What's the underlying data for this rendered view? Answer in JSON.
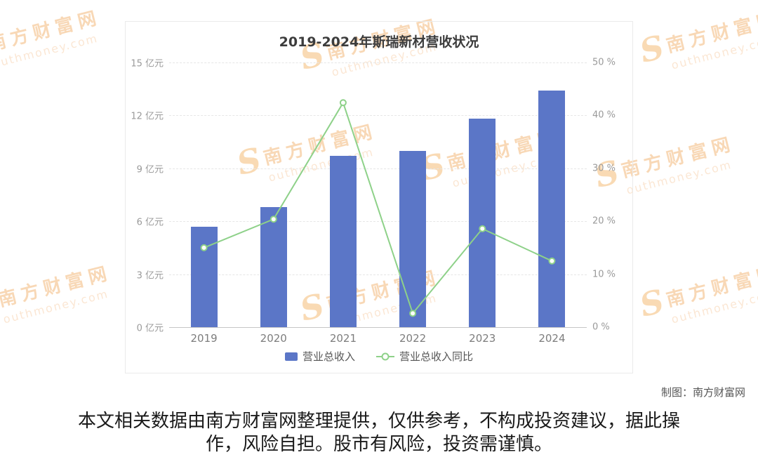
{
  "watermark": {
    "logo_letter": "S",
    "brand_cn": "南方财富网",
    "domain_rest": "outhmoney.com",
    "color": "#f2a94e"
  },
  "chart_data": {
    "type": "bar+line",
    "title": "2019-2024年斯瑞新材营收状况",
    "categories": [
      "2019",
      "2020",
      "2021",
      "2022",
      "2023",
      "2024"
    ],
    "series": [
      {
        "name": "营业总收入",
        "type": "bar",
        "axis": "left",
        "unit": "亿元",
        "color": "#5b76c7",
        "values": [
          5.7,
          6.8,
          9.7,
          10.0,
          11.8,
          13.4
        ]
      },
      {
        "name": "营业总收入同比",
        "type": "line",
        "axis": "right",
        "unit": "%",
        "color": "#8ed189",
        "values": [
          15.0,
          20.4,
          42.4,
          2.6,
          18.6,
          12.5
        ]
      }
    ],
    "left_axis": {
      "unit": "亿元",
      "min": 0,
      "max": 15,
      "ticks": [
        "0 亿元",
        "3 亿元",
        "6 亿元",
        "9 亿元",
        "12 亿元",
        "15 亿元"
      ]
    },
    "right_axis": {
      "unit": "%",
      "min": 0,
      "max": 50,
      "ticks": [
        "0 %",
        "10 %",
        "20 %",
        "30 %",
        "40 %",
        "50 %"
      ]
    },
    "legend_position": "bottom",
    "grid": true
  },
  "credit": "制图：南方财富网",
  "disclaimer": "本文相关数据由南方财富网整理提供，仅供参考，不构成投资建议，据此操作，风险自担。股市有风险，投资需谨慎。"
}
